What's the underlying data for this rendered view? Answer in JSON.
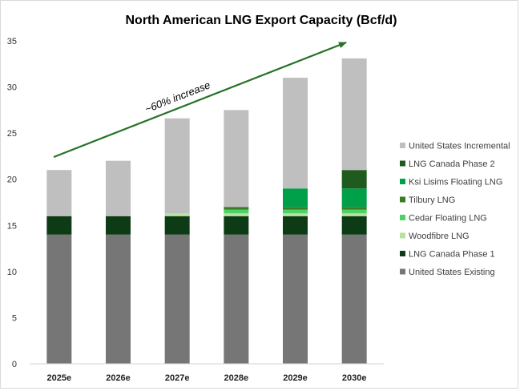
{
  "chart_data": {
    "type": "bar",
    "stacked": true,
    "title": "North American LNG Export Capacity (Bcf/d)",
    "xlabel": "",
    "ylabel": "",
    "ylim": [
      0,
      35
    ],
    "yticks": [
      0,
      5,
      10,
      15,
      20,
      25,
      30,
      35
    ],
    "categories": [
      "2025e",
      "2026e",
      "2027e",
      "2028e",
      "2029e",
      "2030e"
    ],
    "series": [
      {
        "name": "United States Existing",
        "color": "#767676",
        "values": [
          14,
          14,
          14,
          14,
          14,
          14
        ]
      },
      {
        "name": "LNG Canada Phase 1",
        "color": "#0d3b16",
        "values": [
          2,
          2,
          2,
          2,
          2,
          2
        ]
      },
      {
        "name": "Woodfibre LNG",
        "color": "#b7e1a1",
        "values": [
          0,
          0,
          0.3,
          0.3,
          0.3,
          0.3
        ]
      },
      {
        "name": "Cedar Floating LNG",
        "color": "#4fd16a",
        "values": [
          0,
          0,
          0,
          0.4,
          0.4,
          0.4
        ]
      },
      {
        "name": "Tilbury LNG",
        "color": "#3a7d22",
        "values": [
          0,
          0,
          0,
          0.3,
          0.3,
          0.3
        ]
      },
      {
        "name": "Ksi Lisims Floating LNG",
        "color": "#00a04b",
        "values": [
          0,
          0,
          0,
          0,
          2,
          2
        ]
      },
      {
        "name": "LNG Canada Phase 2",
        "color": "#1f5a1f",
        "values": [
          0,
          0,
          0,
          0,
          0,
          2
        ]
      },
      {
        "name": "United States Incremental",
        "color": "#bfbfbf",
        "values": [
          5,
          6,
          10.3,
          10.5,
          12,
          12.1
        ]
      }
    ],
    "legend_position": "right",
    "annotation": {
      "text": "~60% increase",
      "color": "#267326"
    },
    "grid": false
  }
}
